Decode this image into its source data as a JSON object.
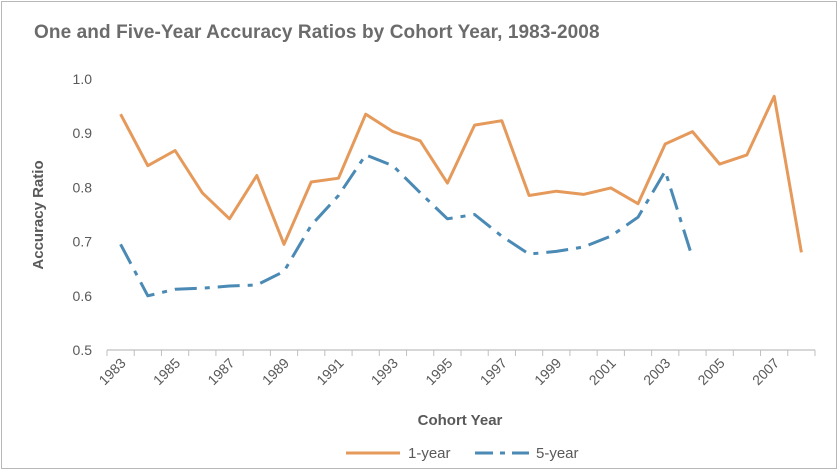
{
  "chart_data": {
    "type": "line",
    "title": "One and Five-Year Accuracy Ratios by Cohort Year, 1983-2008",
    "xlabel": "Cohort Year",
    "ylabel": "Accuracy Ratio",
    "ylim": [
      0.5,
      1.0
    ],
    "yticks": [
      "0.5",
      "0.6",
      "0.7",
      "0.8",
      "0.9",
      "1.0"
    ],
    "x": [
      1983,
      1984,
      1985,
      1986,
      1987,
      1988,
      1989,
      1990,
      1991,
      1992,
      1993,
      1994,
      1995,
      1996,
      1997,
      1998,
      1999,
      2000,
      2001,
      2002,
      2003,
      2004,
      2005,
      2006,
      2007,
      2008
    ],
    "xticks": [
      "1983",
      "1985",
      "1987",
      "1989",
      "1991",
      "1993",
      "1995",
      "1997",
      "1999",
      "2001",
      "2003",
      "2005",
      "2007"
    ],
    "grid": false,
    "legend_position": "bottom",
    "series": [
      {
        "name": "1-year",
        "color": "#E59A5B",
        "style": "solid",
        "values": [
          0.935,
          0.84,
          0.868,
          0.79,
          0.742,
          0.822,
          0.695,
          0.81,
          0.817,
          0.935,
          0.903,
          0.886,
          0.808,
          0.915,
          0.923,
          0.785,
          0.793,
          0.787,
          0.799,
          0.77,
          0.88,
          0.903,
          0.843,
          0.86,
          0.968,
          0.68
        ]
      },
      {
        "name": "5-year",
        "color": "#4A8AB5",
        "style": "dashdot",
        "values": [
          0.695,
          0.6,
          0.612,
          0.614,
          0.618,
          0.62,
          0.645,
          0.73,
          0.785,
          0.86,
          0.84,
          0.79,
          0.742,
          0.75,
          0.71,
          0.677,
          0.682,
          0.69,
          0.71,
          0.745,
          0.83,
          0.67,
          null,
          null,
          null,
          null
        ]
      }
    ]
  }
}
